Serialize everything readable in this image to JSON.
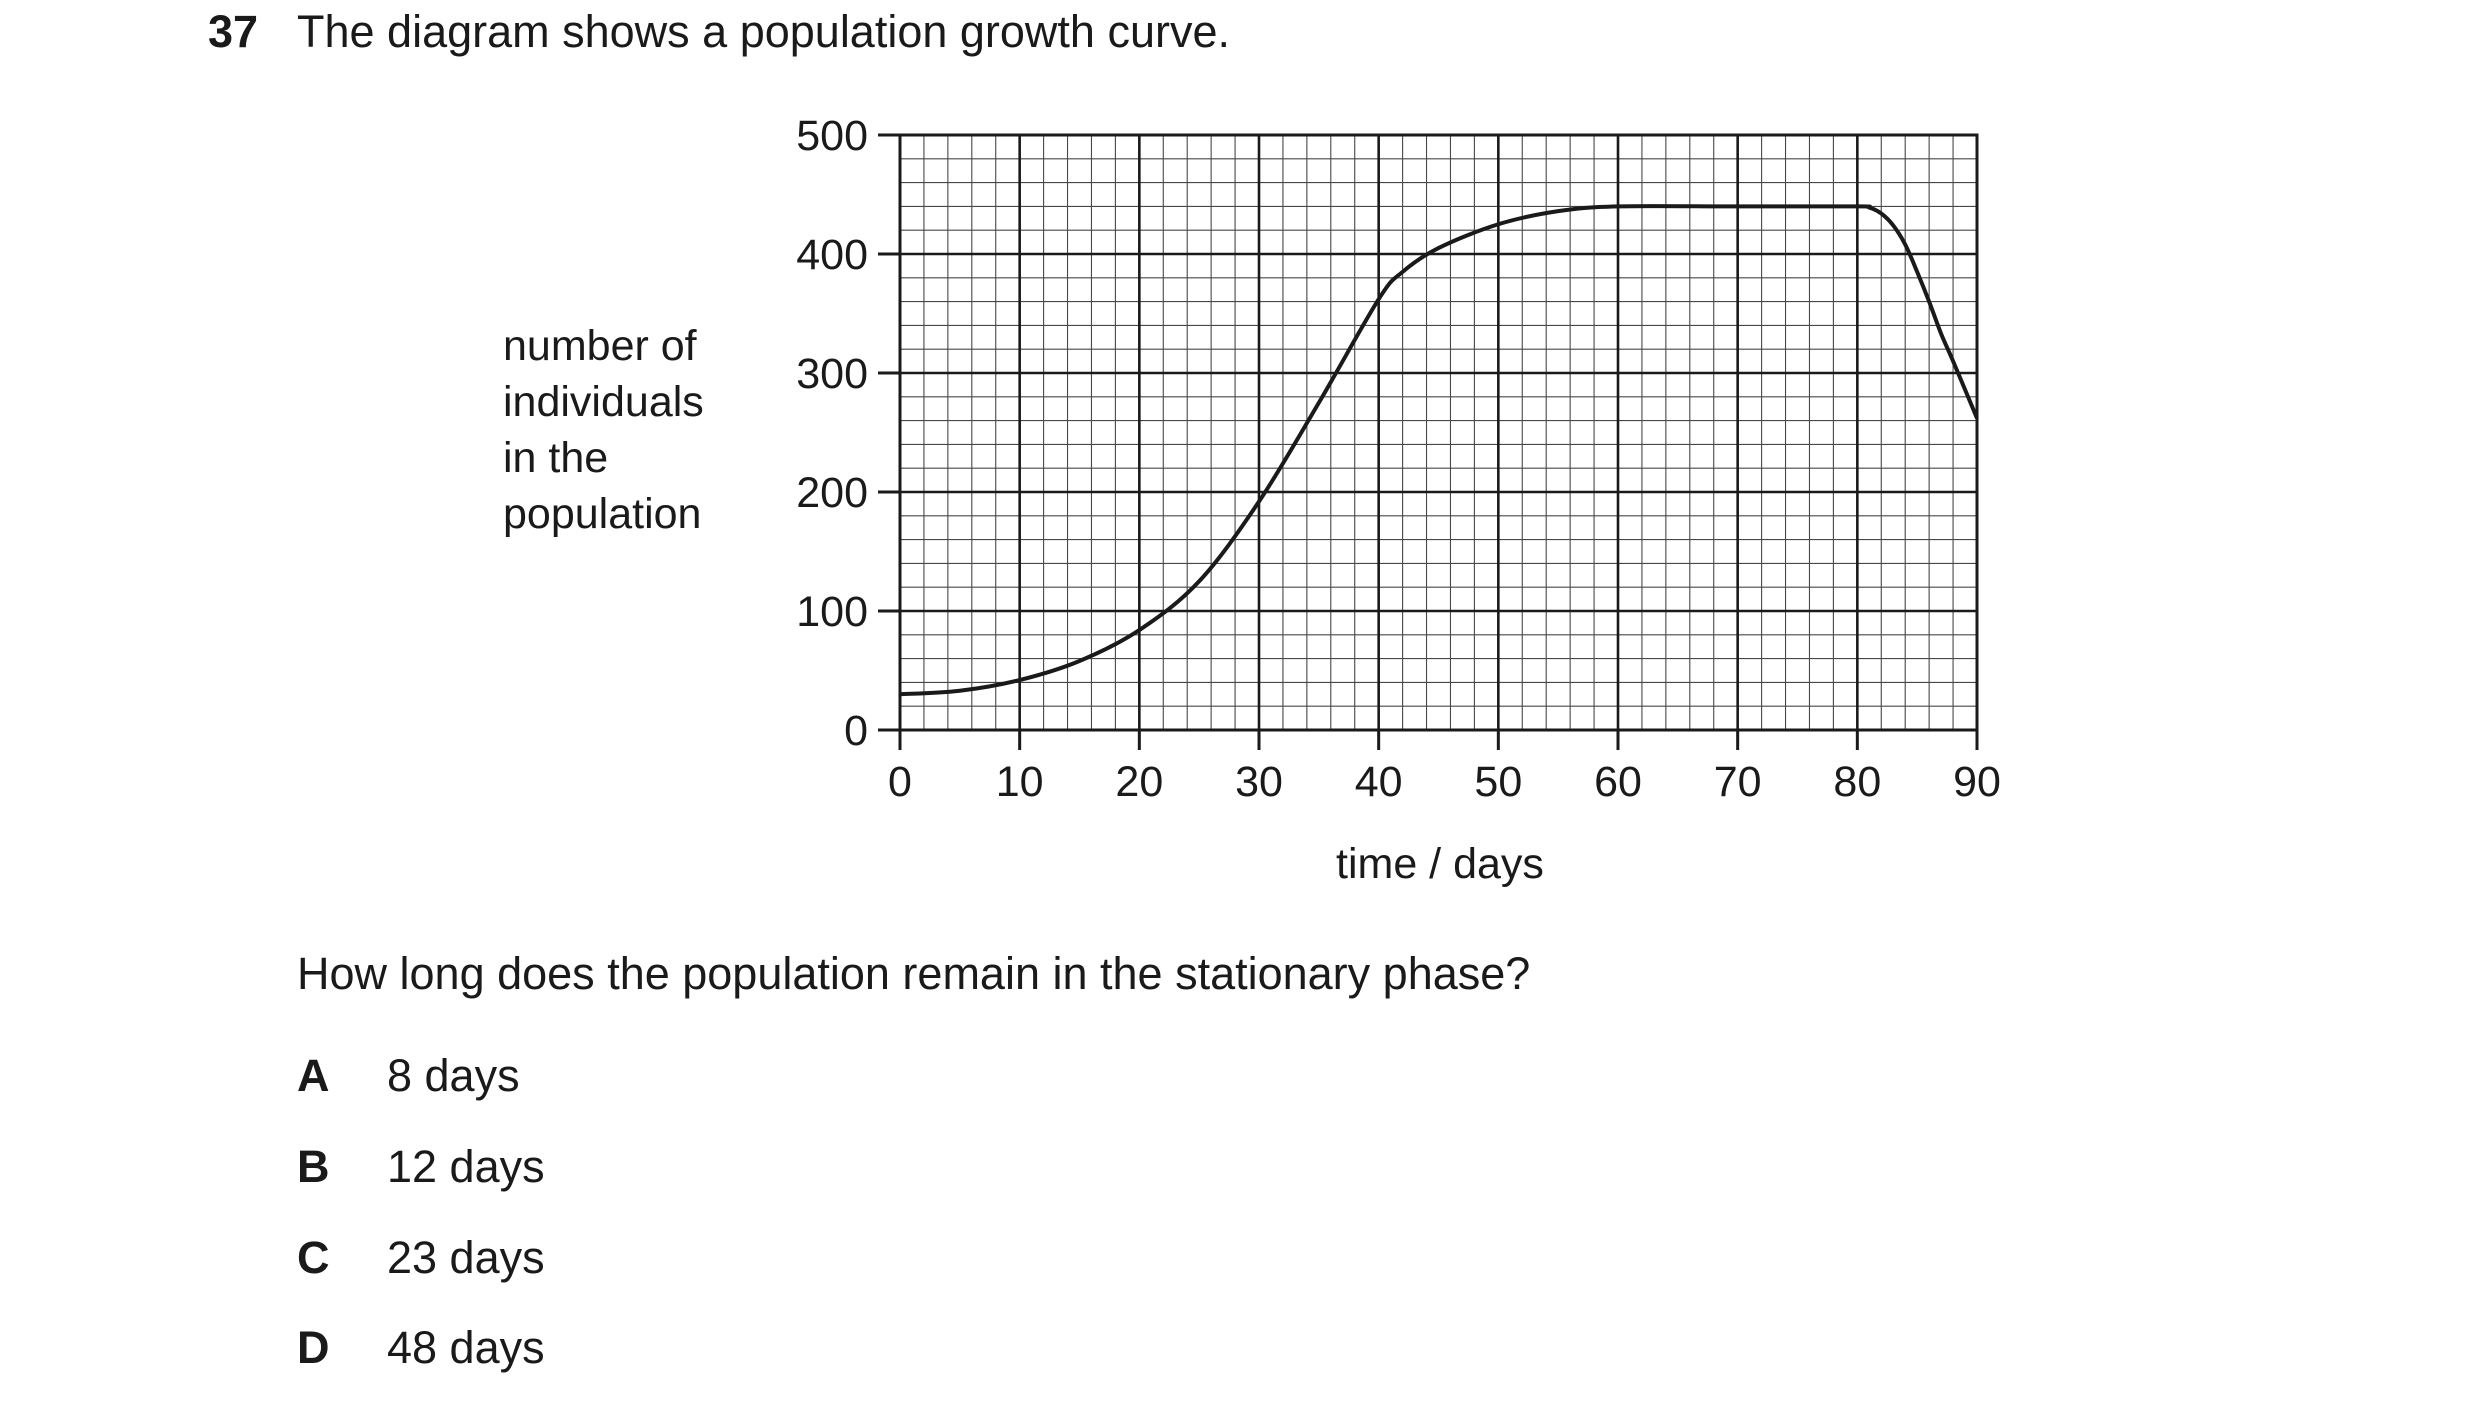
{
  "question": {
    "number": "37",
    "stem": "The diagram shows a population growth curve.",
    "prompt": "How long does the population remain in the stationary phase?",
    "options": [
      {
        "letter": "A",
        "text": "8 days"
      },
      {
        "letter": "B",
        "text": "12 days"
      },
      {
        "letter": "C",
        "text": "23 days"
      },
      {
        "letter": "D",
        "text": "48 days"
      }
    ]
  },
  "chart_data": {
    "type": "line",
    "title": "",
    "xlabel": "time / days",
    "ylabel_lines": [
      "number of",
      "individuals",
      "in the",
      "population"
    ],
    "xlim": [
      0,
      90
    ],
    "ylim": [
      0,
      500
    ],
    "x_ticks": [
      0,
      10,
      20,
      30,
      40,
      50,
      60,
      70,
      80,
      90
    ],
    "x_tick_labels": [
      "0",
      "10",
      "20",
      "30",
      "40",
      "50",
      "60",
      "70",
      "80",
      "90"
    ],
    "y_ticks": [
      0,
      100,
      200,
      300,
      400,
      500
    ],
    "y_tick_labels": [
      "0",
      "100",
      "200",
      "300",
      "400",
      "500"
    ],
    "grid": true,
    "grid_minor_x_step": 2,
    "grid_minor_y_step": 20,
    "line_color": "#1a1a1a",
    "grid_color": "#1a1a1a",
    "series": [
      {
        "x": [
          0,
          5,
          10,
          15,
          20,
          25,
          30,
          35,
          40,
          42,
          45,
          50,
          55,
          60,
          70,
          80,
          81,
          82,
          83,
          84,
          85,
          86,
          87,
          88,
          90
        ],
        "y": [
          30,
          33,
          42,
          58,
          84,
          125,
          192,
          275,
          362,
          385,
          405,
          425,
          436,
          440,
          440,
          440,
          439,
          434,
          424,
          408,
          385,
          360,
          333,
          310,
          262
        ]
      }
    ]
  }
}
